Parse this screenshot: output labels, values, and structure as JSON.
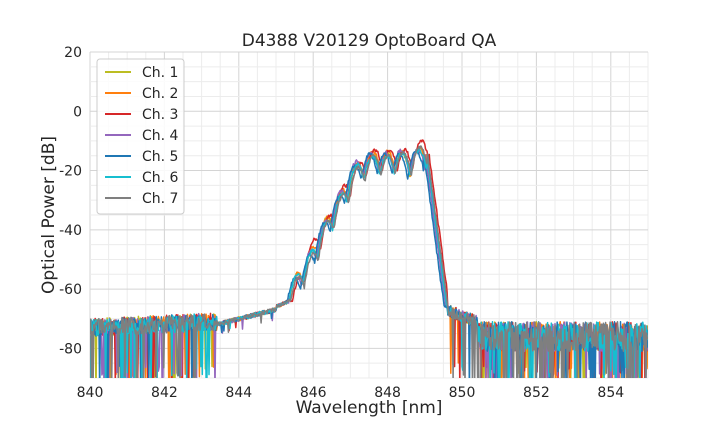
{
  "chart_data": {
    "type": "line",
    "title": "D4388 V20129 OptoBoard QA",
    "xlabel": "Wavelength [nm]",
    "ylabel": "Optical Power [dB]",
    "xlim": [
      840,
      855
    ],
    "ylim": [
      -90,
      20
    ],
    "xticks": [
      840,
      842,
      844,
      846,
      848,
      850,
      852,
      854
    ],
    "yticks": [
      -80,
      -60,
      -40,
      -20,
      0,
      20
    ],
    "grid": true,
    "legend_position": "top-left",
    "series": [
      {
        "name": "Ch. 1",
        "color": "#bcbd22",
        "shift": -0.02,
        "offset": 0.0,
        "x": [
          845.6,
          846.0,
          846.4,
          846.8,
          847.2,
          847.6,
          848.0,
          848.4,
          848.85
        ],
        "y": [
          -55,
          -47,
          -36,
          -27,
          -18,
          -14,
          -14,
          -14,
          -13
        ]
      },
      {
        "name": "Ch. 2",
        "color": "#ff7f0e",
        "shift": 0.0,
        "offset": 0.5,
        "x": [
          845.6,
          846.0,
          846.4,
          846.8,
          847.2,
          847.6,
          848.0,
          848.4,
          848.85
        ],
        "y": [
          -55,
          -46,
          -36,
          -27,
          -18,
          -14,
          -14,
          -14,
          -13
        ]
      },
      {
        "name": "Ch. 3",
        "color": "#d62728",
        "shift": 0.06,
        "offset": 1.0,
        "x": [
          845.6,
          846.0,
          846.4,
          846.8,
          847.2,
          847.6,
          848.0,
          848.4,
          848.85
        ],
        "y": [
          -57,
          -44,
          -36,
          -26,
          -18,
          -14,
          -14,
          -14,
          -11
        ]
      },
      {
        "name": "Ch. 4",
        "color": "#9467bd",
        "shift": -0.04,
        "offset": 0.0,
        "x": [
          845.6,
          846.0,
          846.4,
          846.8,
          847.2,
          847.6,
          848.0,
          848.4,
          848.85
        ],
        "y": [
          -56,
          -47,
          -37,
          -27,
          -17,
          -14,
          -14,
          -13,
          -13
        ]
      },
      {
        "name": "Ch. 5",
        "color": "#1f77b4",
        "shift": -0.08,
        "offset": -0.5,
        "x": [
          845.6,
          846.0,
          846.4,
          846.8,
          847.2,
          847.6,
          848.0,
          848.4,
          848.85
        ],
        "y": [
          -56,
          -48,
          -37,
          -28,
          -18,
          -14,
          -14,
          -14,
          -13
        ]
      },
      {
        "name": "Ch. 6",
        "color": "#17becf",
        "shift": -0.01,
        "offset": 0.0,
        "x": [
          845.6,
          846.0,
          846.4,
          846.8,
          847.2,
          847.6,
          848.0,
          848.4,
          848.85
        ],
        "y": [
          -55,
          -47,
          -37,
          -28,
          -18,
          -15,
          -15,
          -14,
          -13
        ]
      },
      {
        "name": "Ch. 7",
        "color": "#7f7f7f",
        "shift": 0.02,
        "offset": 0.0,
        "x": [
          845.6,
          846.0,
          846.4,
          846.8,
          847.2,
          847.6,
          848.0,
          848.4,
          848.85
        ],
        "y": [
          -56,
          -48,
          -37,
          -28,
          -19,
          -15,
          -15,
          -14,
          -12
        ]
      }
    ]
  }
}
